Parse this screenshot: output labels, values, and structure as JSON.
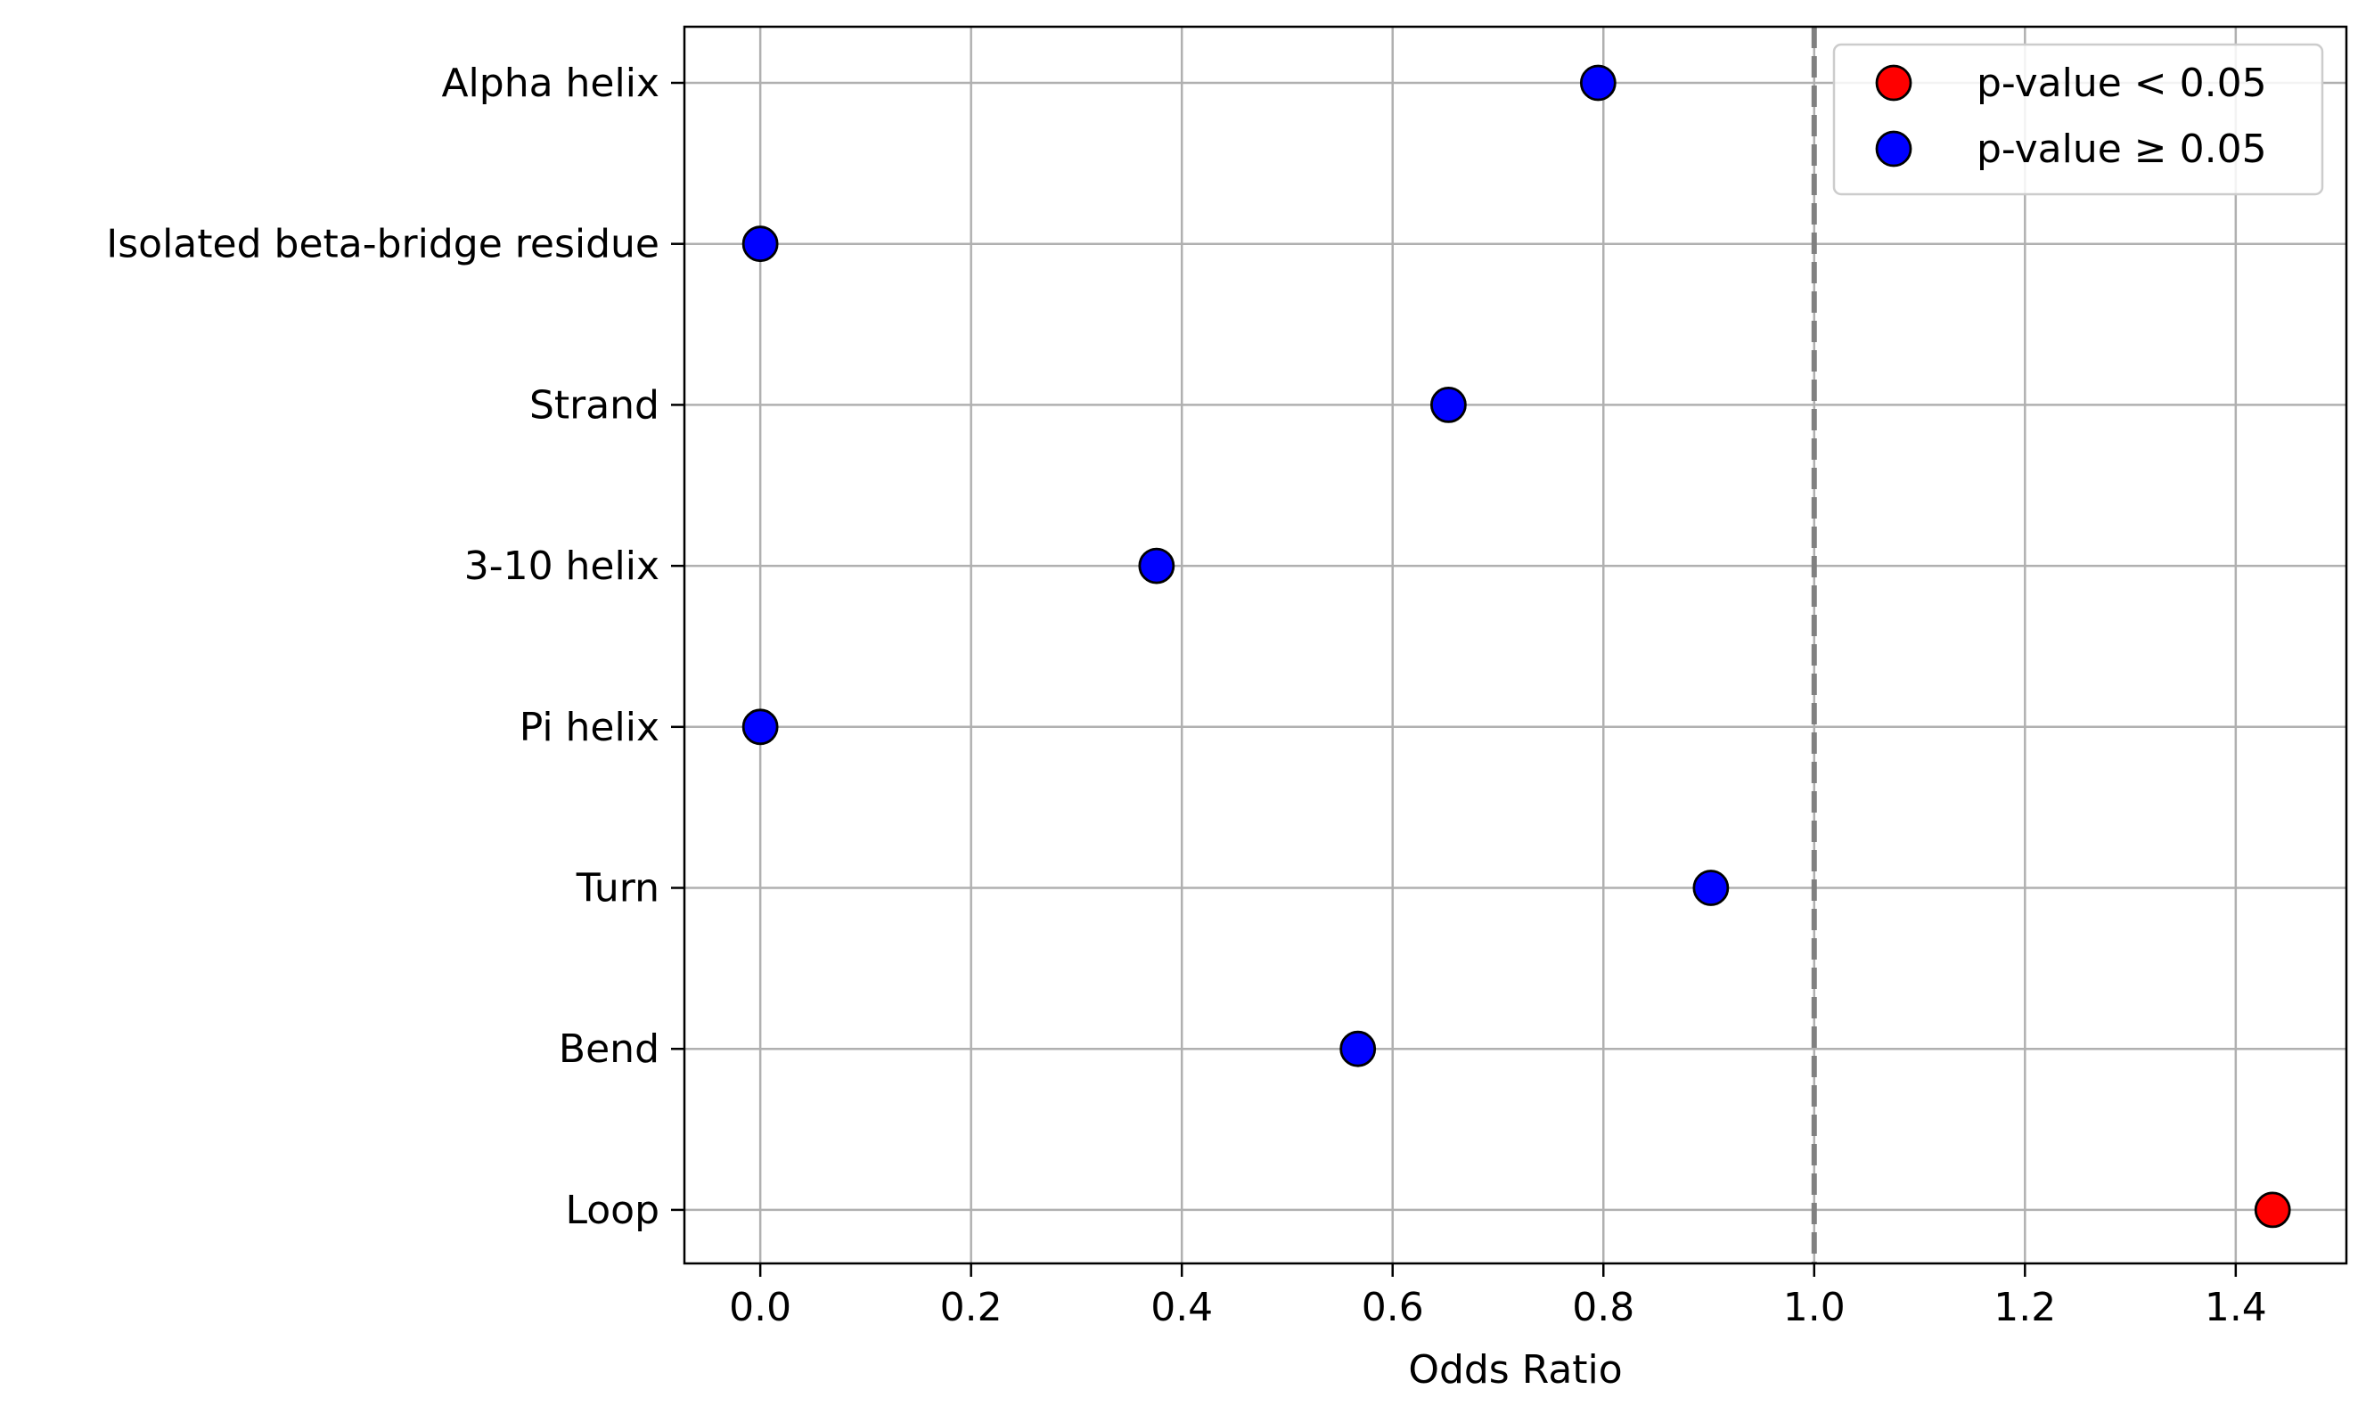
{
  "chart_data": {
    "type": "scatter",
    "title": "",
    "xlabel": "Odds Ratio",
    "ylabel": "",
    "xlim": [
      -0.072,
      1.505
    ],
    "xticks": [
      0.0,
      0.2,
      0.4,
      0.6,
      0.8,
      1.0,
      1.2,
      1.4
    ],
    "xtick_labels": [
      "0.0",
      "0.2",
      "0.4",
      "0.6",
      "0.8",
      "1.0",
      "1.2",
      "1.4"
    ],
    "categories": [
      "Alpha helix",
      "Isolated beta-bridge residue",
      "Strand",
      "3-10 helix",
      "Pi helix",
      "Turn",
      "Bend",
      "Loop"
    ],
    "points": [
      {
        "category": "Alpha helix",
        "value": 0.795,
        "significant": false
      },
      {
        "category": "Isolated beta-bridge residue",
        "value": 0.0,
        "significant": false
      },
      {
        "category": "Strand",
        "value": 0.653,
        "significant": false
      },
      {
        "category": "3-10 helix",
        "value": 0.376,
        "significant": false
      },
      {
        "category": "Pi helix",
        "value": 0.0,
        "significant": false
      },
      {
        "category": "Turn",
        "value": 0.902,
        "significant": false
      },
      {
        "category": "Bend",
        "value": 0.567,
        "significant": false
      },
      {
        "category": "Loop",
        "value": 1.435,
        "significant": true
      }
    ],
    "reference_line": {
      "x": 1.0,
      "style": "dashed",
      "color": "#808080"
    },
    "grid": true,
    "legend": {
      "placement": "top-right",
      "entries": [
        {
          "label": "p-value < 0.05",
          "color": "#ff0000"
        },
        {
          "label": "p-value ≥ 0.05",
          "color": "#0000ff"
        }
      ]
    },
    "colors": {
      "significant": "#ff0000",
      "not_significant": "#0000ff",
      "grid": "#b0b0b0",
      "marker_edge": "#000000"
    }
  }
}
